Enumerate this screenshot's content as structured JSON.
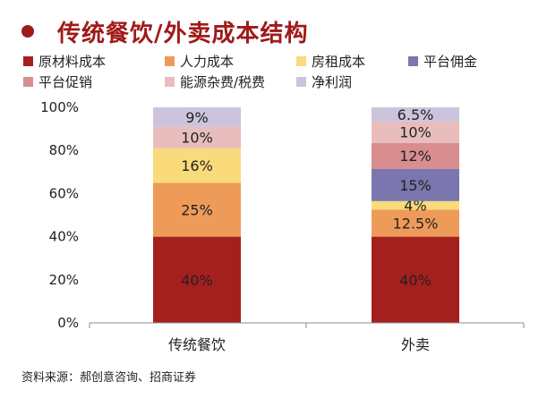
{
  "title": "传统餐饮/外卖成本结构",
  "source": "资料来源：郝创意咨询、招商证券",
  "colors": {
    "accent": "#a01a1a"
  },
  "chart_data": {
    "type": "bar",
    "stacked": true,
    "categories": [
      "传统餐饮",
      "外卖"
    ],
    "ylim": [
      0,
      100
    ],
    "y_ticks": [
      "0%",
      "20%",
      "40%",
      "60%",
      "80%",
      "100%"
    ],
    "y_tick_values": [
      0,
      20,
      40,
      60,
      80,
      100
    ],
    "legend_position": "top",
    "series": [
      {
        "name": "原材料成本",
        "color": "#a4201e",
        "values": [
          40,
          40
        ],
        "labels": [
          "40%",
          "40%"
        ]
      },
      {
        "name": "人力成本",
        "color": "#ee9b5a",
        "values": [
          25,
          12.5
        ],
        "labels": [
          "25%",
          "12.5%"
        ]
      },
      {
        "name": "房租成本",
        "color": "#f9db7c",
        "values": [
          16,
          4
        ],
        "labels": [
          "16%",
          "4%"
        ]
      },
      {
        "name": "平台佣金",
        "color": "#7b76ad",
        "values": [
          0,
          15
        ],
        "labels": [
          "",
          "15%"
        ]
      },
      {
        "name": "平台促销",
        "color": "#d88d8f",
        "values": [
          0,
          12
        ],
        "labels": [
          "",
          "12%"
        ]
      },
      {
        "name": "能源杂费/税费",
        "color": "#e8bdbd",
        "values": [
          10,
          10
        ],
        "labels": [
          "10%",
          "10%"
        ]
      },
      {
        "name": "净利润",
        "color": "#cbc4dc",
        "values": [
          9,
          6.5
        ],
        "labels": [
          "9%",
          "6.5%"
        ]
      }
    ]
  }
}
